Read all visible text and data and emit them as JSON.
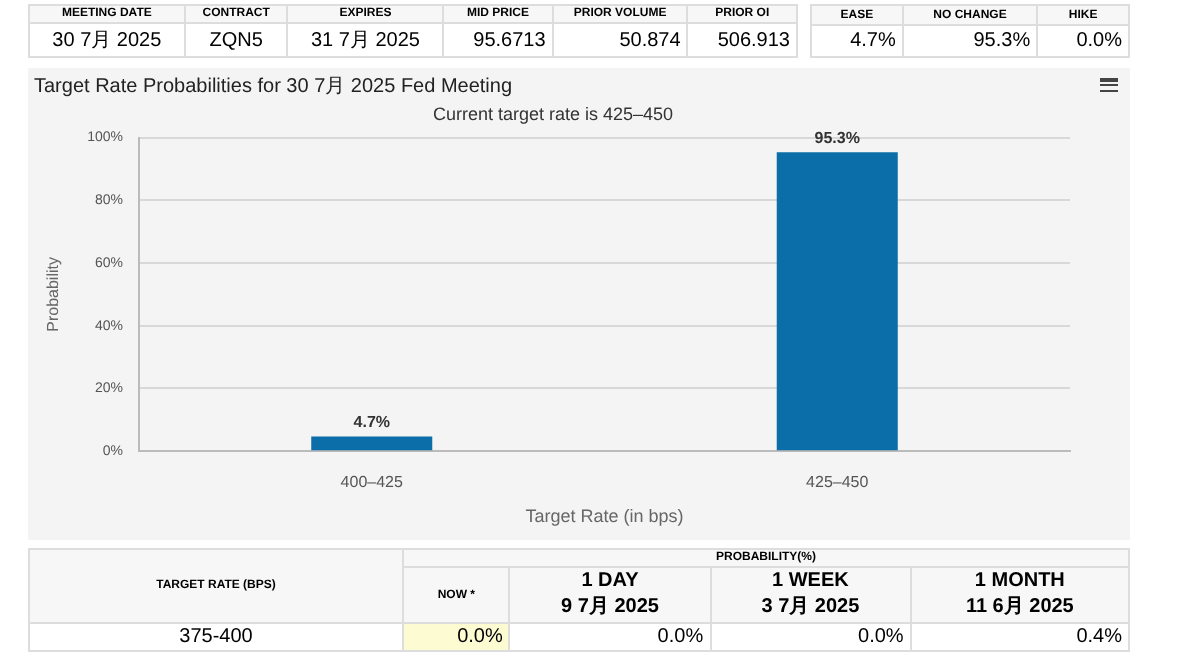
{
  "chart_data": {
    "type": "bar",
    "title": "Target Rate Probabilities for 30 7月 2025 Fed Meeting",
    "subtitle": "Current target rate is 425–450",
    "xlabel": "Target Rate (in bps)",
    "ylabel": "Probability",
    "categories": [
      "400–425",
      "425–450"
    ],
    "values": [
      4.7,
      95.3
    ],
    "color": "#0b6ea9",
    "ylim": [
      0,
      100
    ],
    "yticks": [
      {
        "value": 0,
        "label": "0%"
      },
      {
        "value": 20,
        "label": "20%"
      },
      {
        "value": 40,
        "label": "40%"
      },
      {
        "value": 60,
        "label": "60%"
      },
      {
        "value": 80,
        "label": "80%"
      },
      {
        "value": 100,
        "label": "100%"
      }
    ],
    "value_labels": [
      "4.7%",
      "95.3%"
    ],
    "grid": "y",
    "legend": false,
    "annotations": [
      "MEETING DATE",
      "CONTRACT",
      "EXPIRES",
      "MID PRICE",
      "PRIOR VOLUME",
      "PRIOR OI",
      "EASE",
      "NO CHANGE",
      "HIKE",
      "30 7月 2025",
      "ZQN5",
      "31 7月 2025",
      "95.6713",
      "50.874",
      "506.913",
      "4.7%",
      "95.3%",
      "0.0%",
      "TARGET RATE (BPS)",
      "PROBABILITY(%)",
      "NOW *",
      "1 DAY\n9 7月 2025",
      "1 WEEK\n3 7月 2025",
      "1 MONTH\n11 6月 2025",
      "375-400",
      "0.0%",
      "0.0%",
      "0.0%",
      "0.4%"
    ]
  }
}
